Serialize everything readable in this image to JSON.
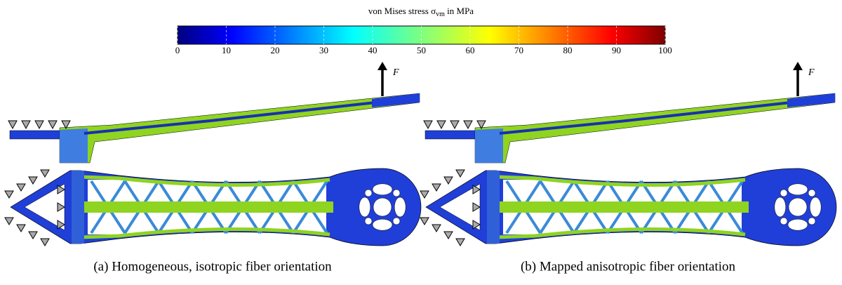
{
  "colorbar": {
    "label": "von Mises stress σ",
    "label_sub": "vm",
    "label_suffix": " in MPa",
    "clim": [
      0,
      100
    ],
    "ticks": [
      0,
      10,
      20,
      30,
      40,
      50,
      60,
      70,
      80,
      90,
      100
    ]
  },
  "panels": [
    {
      "caption": "(a) Homogeneous, isotropic fiber orientation",
      "force_label": "F"
    },
    {
      "caption": "(b) Mapped anisotropic fiber orientation",
      "force_label": "F"
    }
  ]
}
